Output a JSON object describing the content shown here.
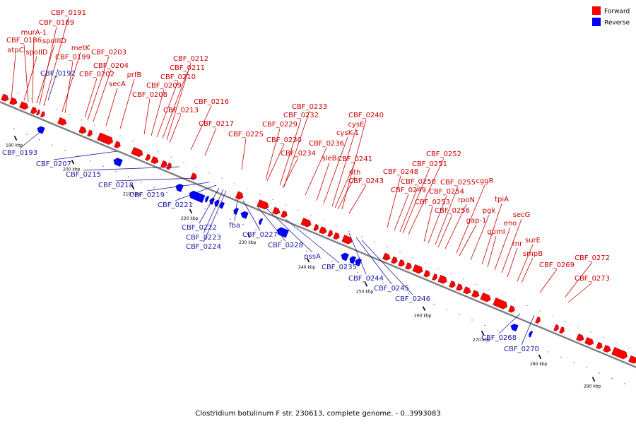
{
  "colors": {
    "forward": "#ff0000",
    "reverse": "#0000ff",
    "axis": "#808080",
    "label_forward": "#cc0000",
    "label_reverse": "#1a1aa6"
  },
  "legend": [
    {
      "label": "Forward",
      "color": "#ff0000"
    },
    {
      "label": "Reverse",
      "color": "#0000ff"
    }
  ],
  "caption": "Clostridium botulinum F str. 230613, complete genome. - 0..3993083",
  "ticks": [
    "190 kbp",
    "200 kbp",
    "210 kbp",
    "220 kbp",
    "230 kbp",
    "240 kbp",
    "250 kbp",
    "260 kbp",
    "270 kbp",
    "280 kbp",
    "290 kbp"
  ],
  "genes_forward": [
    "CBF_0191",
    "CBF_0189",
    "murA-1",
    "spoIIID",
    "CBF_0186",
    "spoIID",
    "atpC",
    "metK",
    "CBF_0199",
    "CBF_0203",
    "CBF_0204",
    "CBF_0202",
    "secA",
    "prfB",
    "CBF_0212",
    "CBF_0211",
    "CBF_0210",
    "CBF_0209",
    "CBF_0208",
    "CBF_0213",
    "CBF_0216",
    "CBF_0217",
    "CBF_0225",
    "CBF_0233",
    "CBF_0232",
    "CBF_0229",
    "CBF_0230",
    "CBF_0234",
    "CBF_0240",
    "cysE",
    "cysK-1",
    "CBF_0236",
    "sleB",
    "CBF_0241",
    "nth",
    "CBF_0243",
    "CBF_0252",
    "CBF_0251",
    "CBF_0248",
    "CBF_0250",
    "CBF_0249",
    "CBF_0255",
    "CBF_0254",
    "CBF_0253",
    "cggR",
    "rpoN",
    "CBF_0256",
    "tpiA",
    "gap-1",
    "pgk",
    "secG",
    "eno",
    "gpmI",
    "rnr",
    "surE",
    "smpB",
    "CBF_0272",
    "CBF_0269",
    "CBF_0273"
  ],
  "genes_reverse": [
    "CBF_0192",
    "CBF_0193",
    "CBF_0207",
    "CBF_0215",
    "CBF_0218",
    "CBF_0219",
    "CBF_0221",
    "CBF_0222",
    "CBF_0223",
    "CBF_0224",
    "fba",
    "CBF_0227",
    "CBF_0228",
    "pssA",
    "CBF_0235",
    "CBF_0244",
    "CBF_0245",
    "CBF_0246",
    "CBF_0268",
    "CBF_0270"
  ]
}
